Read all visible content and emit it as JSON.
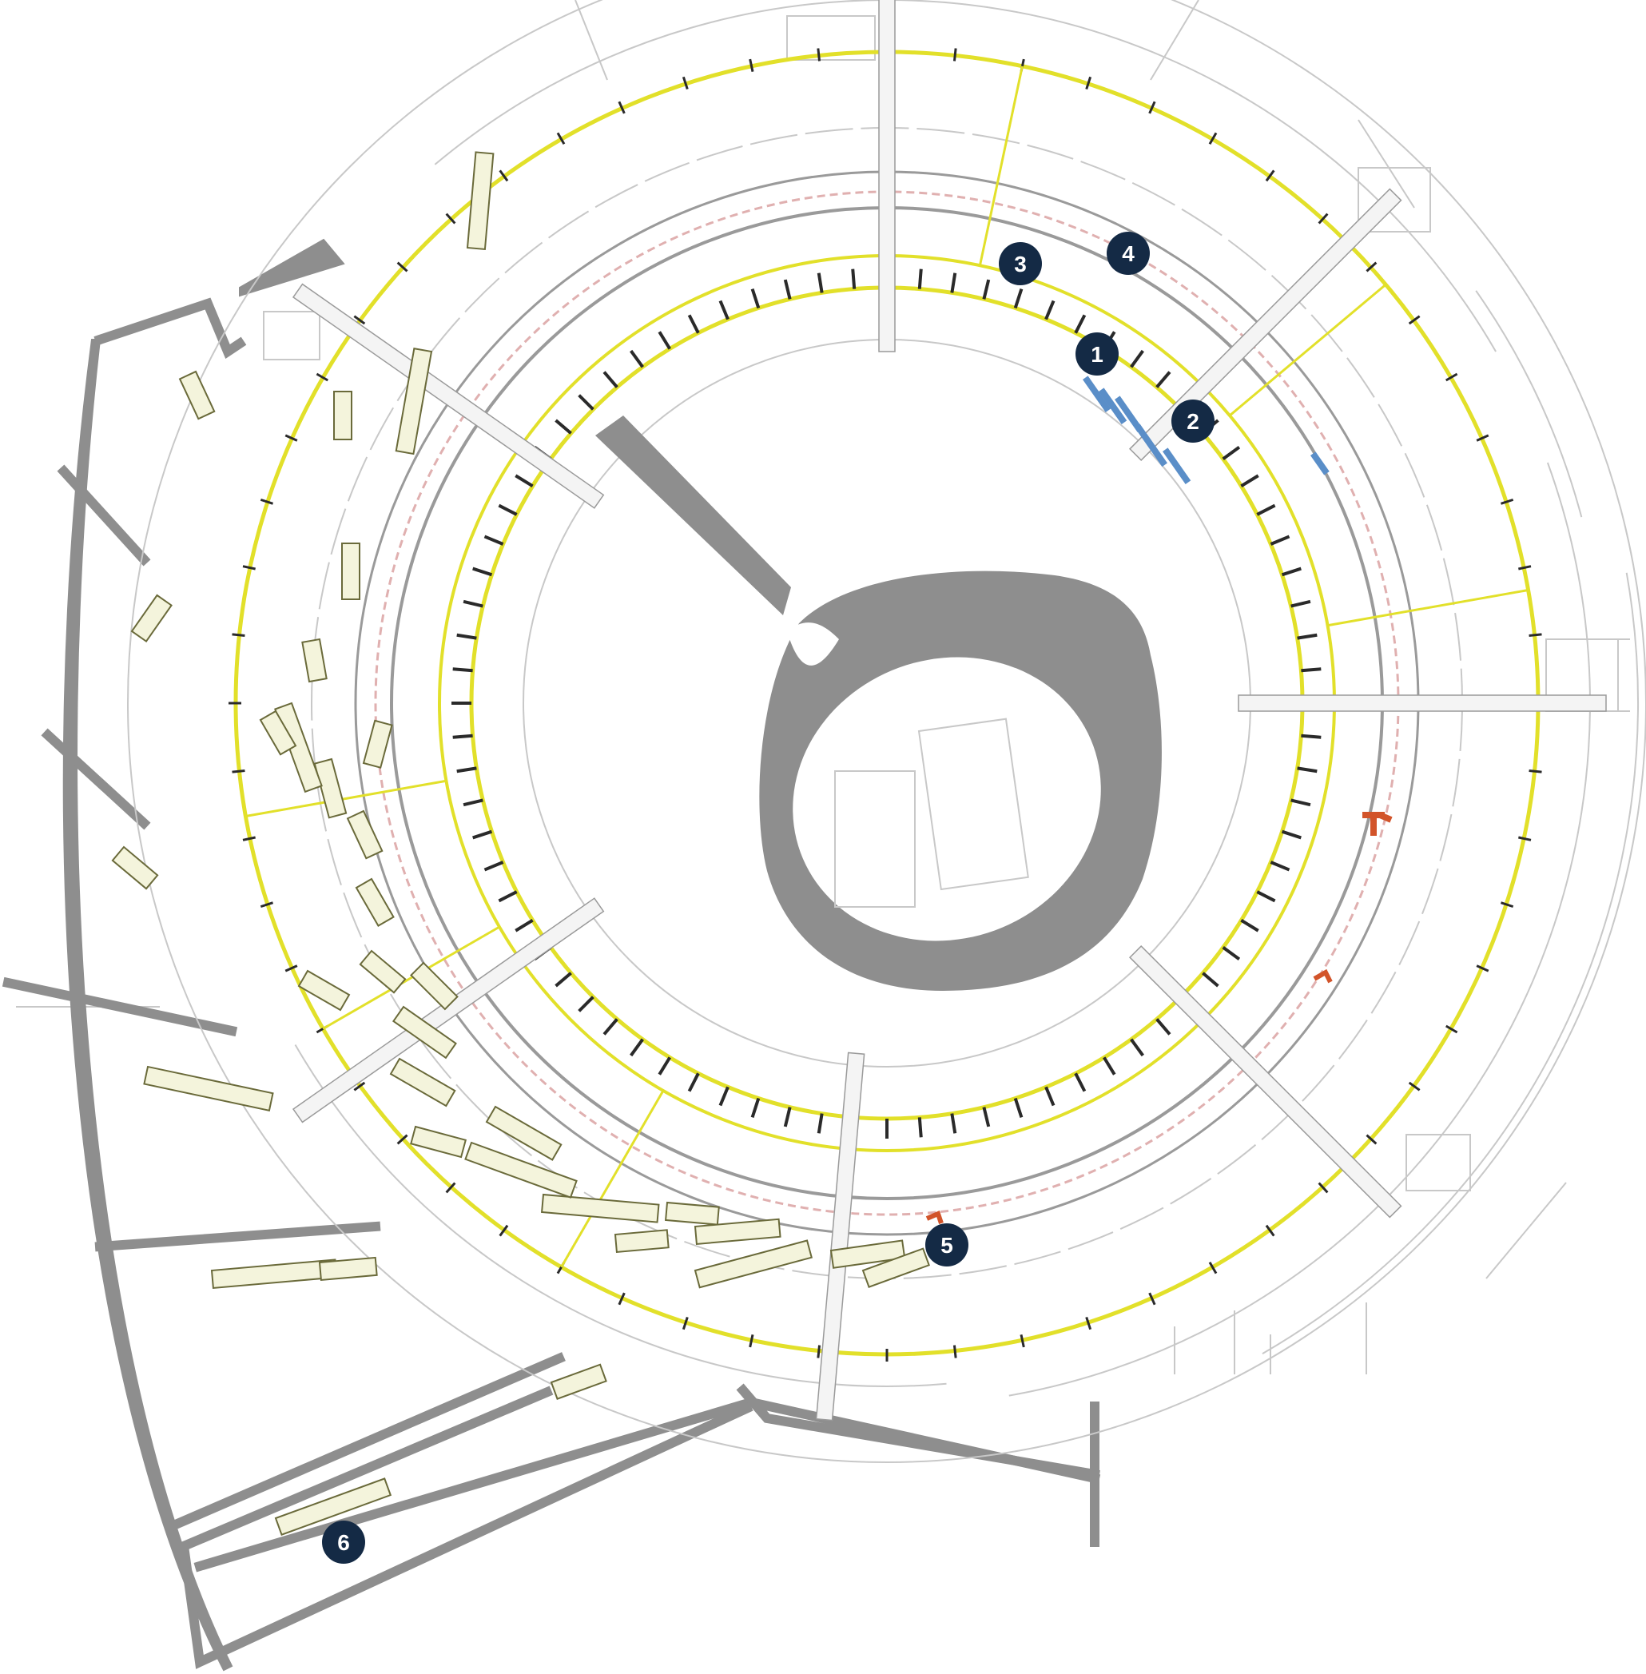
{
  "colors": {
    "background": "#ffffff",
    "outer_wall": "#8e8e8e",
    "ring_yellow": "#e2e02a",
    "line_gray": "#9a9a9a",
    "light_line": "#c8c8c8",
    "dark_tick": "#2a2a2a",
    "marker_fill": "#142a45",
    "marker_text": "#ffffff",
    "beamline_fill": "#f4f4dc",
    "beamline_stroke": "#6a6a3a",
    "equipment_red": "#d2542a",
    "equipment_blue": "#5a8ec8"
  },
  "markers": [
    {
      "id": "1",
      "label": "1"
    },
    {
      "id": "2",
      "label": "2"
    },
    {
      "id": "3",
      "label": "3"
    },
    {
      "id": "4",
      "label": "4"
    },
    {
      "id": "5",
      "label": "5"
    },
    {
      "id": "6",
      "label": "6"
    }
  ],
  "icons": {
    "marker": "numbered-circle-icon",
    "wall": "solid-wall-shape",
    "beamline": "beamline-hutch-rectangle"
  }
}
